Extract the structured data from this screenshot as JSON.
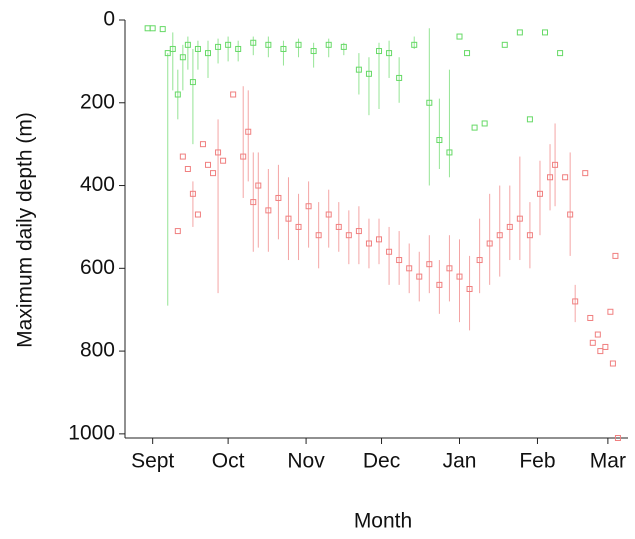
{
  "chart_data": {
    "type": "scatter",
    "x_label": "Month",
    "y_label": "Maximum daily depth (m)",
    "xlim": [
      -11,
      189
    ],
    "ylim": [
      0,
      1010
    ],
    "y_inverted": true,
    "xticks": [
      {
        "value": 0,
        "label": "Sept"
      },
      {
        "value": 30,
        "label": "Oct"
      },
      {
        "value": 61,
        "label": "Nov"
      },
      {
        "value": 91,
        "label": "Dec"
      },
      {
        "value": 122,
        "label": "Jan"
      },
      {
        "value": 153,
        "label": "Feb"
      },
      {
        "value": 181,
        "label": "Mar"
      }
    ],
    "yticks": [
      0,
      200,
      400,
      600,
      800,
      1000
    ],
    "series": [
      {
        "color": "#66d966",
        "x": [
          -2,
          0,
          4,
          6,
          8,
          10,
          12,
          14,
          16,
          18,
          22,
          26,
          30,
          34,
          40,
          46,
          52,
          58,
          64,
          70,
          76,
          82,
          86,
          90,
          94,
          98,
          104,
          110,
          114,
          118,
          122,
          125,
          128,
          132,
          140,
          146,
          150,
          156,
          162
        ],
        "values": [
          20,
          20,
          22,
          80,
          70,
          180,
          90,
          60,
          150,
          70,
          80,
          65,
          60,
          70,
          55,
          60,
          70,
          60,
          75,
          60,
          65,
          120,
          130,
          75,
          80,
          140,
          60,
          200,
          290,
          320,
          40,
          80,
          260,
          250,
          60,
          30,
          240,
          30,
          80
        ],
        "yerr_minus": [
          0,
          0,
          0,
          0,
          40,
          60,
          30,
          20,
          80,
          20,
          30,
          20,
          20,
          20,
          15,
          20,
          20,
          15,
          20,
          15,
          10,
          40,
          40,
          20,
          30,
          50,
          20,
          180,
          100,
          200,
          0,
          0,
          0,
          0,
          0,
          0,
          0,
          0,
          0
        ],
        "yerr_plus": [
          0,
          0,
          0,
          610,
          100,
          60,
          80,
          60,
          150,
          50,
          60,
          40,
          40,
          30,
          30,
          30,
          40,
          30,
          40,
          30,
          20,
          60,
          100,
          140,
          60,
          60,
          10,
          200,
          70,
          60,
          0,
          0,
          0,
          0,
          0,
          0,
          0,
          0,
          0
        ]
      },
      {
        "color": "#f07f7f",
        "x": [
          10,
          12,
          14,
          16,
          18,
          20,
          22,
          24,
          26,
          28,
          32,
          36,
          38,
          40,
          42,
          46,
          50,
          54,
          58,
          62,
          66,
          70,
          74,
          78,
          82,
          86,
          90,
          94,
          98,
          102,
          106,
          110,
          114,
          118,
          122,
          126,
          130,
          134,
          138,
          142,
          146,
          150,
          154,
          158,
          160,
          164,
          166,
          168,
          172,
          174,
          175,
          177,
          178,
          180,
          182,
          183,
          184,
          185
        ],
        "values": [
          510,
          330,
          360,
          420,
          470,
          300,
          350,
          370,
          320,
          340,
          180,
          330,
          270,
          440,
          400,
          460,
          430,
          480,
          500,
          450,
          520,
          470,
          500,
          520,
          510,
          540,
          530,
          560,
          580,
          600,
          620,
          590,
          640,
          600,
          620,
          650,
          580,
          540,
          520,
          500,
          480,
          520,
          420,
          380,
          350,
          380,
          470,
          680,
          370,
          720,
          780,
          760,
          800,
          790,
          705,
          830,
          570,
          1010
        ],
        "yerr_minus": [
          0,
          0,
          0,
          30,
          0,
          0,
          0,
          0,
          80,
          0,
          0,
          170,
          100,
          120,
          80,
          100,
          80,
          100,
          80,
          60,
          80,
          60,
          60,
          60,
          60,
          60,
          50,
          60,
          70,
          60,
          60,
          70,
          60,
          80,
          90,
          80,
          100,
          120,
          120,
          100,
          150,
          80,
          80,
          80,
          100,
          0,
          150,
          40,
          0,
          0,
          0,
          0,
          0,
          0,
          0,
          0,
          0,
          0
        ],
        "yerr_plus": [
          0,
          0,
          0,
          80,
          0,
          0,
          0,
          0,
          340,
          0,
          0,
          100,
          120,
          120,
          150,
          100,
          100,
          100,
          80,
          100,
          80,
          80,
          60,
          70,
          80,
          60,
          60,
          80,
          60,
          60,
          60,
          70,
          70,
          80,
          110,
          100,
          80,
          100,
          100,
          80,
          100,
          80,
          100,
          80,
          100,
          0,
          100,
          50,
          0,
          0,
          0,
          0,
          0,
          0,
          0,
          0,
          0,
          0
        ]
      }
    ]
  }
}
